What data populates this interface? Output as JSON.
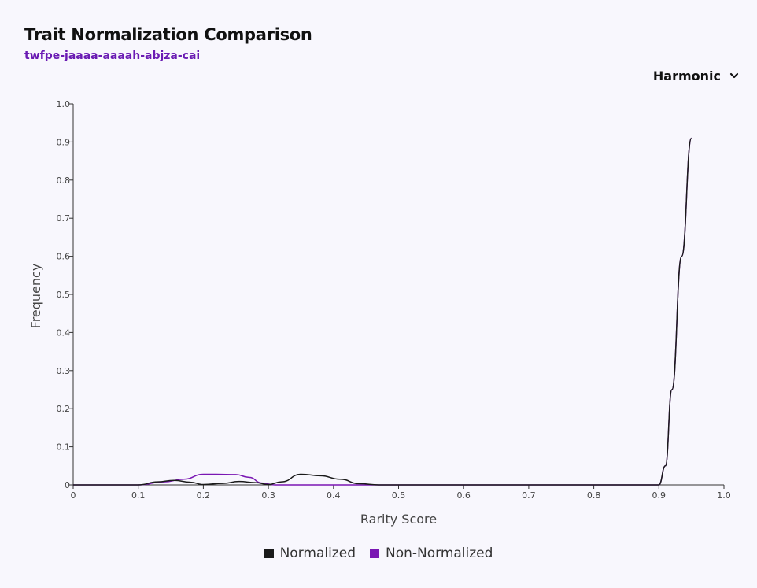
{
  "header": {
    "title": "Trait Normalization Comparison",
    "subtitle": "twfpe-jaaaa-aaaah-abjza-cai"
  },
  "dropdown": {
    "label": "Harmonic",
    "icon": "chevron-down-icon"
  },
  "colors": {
    "normalized": "#1a1a1a",
    "non_normalized": "#7a17b3",
    "accent": "#6a1bb3"
  },
  "chart_data": {
    "type": "line",
    "title": "",
    "xlabel": "Rarity Score",
    "ylabel": "Frequency",
    "xlim": [
      0,
      1
    ],
    "ylim": [
      0,
      1
    ],
    "x_ticks": [
      "0",
      "0.1",
      "0.2",
      "0.3",
      "0.4",
      "0.5",
      "0.6",
      "0.7",
      "0.8",
      "0.9",
      "1.0"
    ],
    "y_ticks": [
      "0",
      "0.1",
      "0.2",
      "0.3",
      "0.4",
      "0.5",
      "0.6",
      "0.7",
      "0.8",
      "0.9",
      "1.0"
    ],
    "grid": false,
    "legend_position": "bottom-center",
    "series": [
      {
        "name": "Normalized",
        "color": "#1a1a1a",
        "points": [
          [
            0,
            0
          ],
          [
            0.1,
            0
          ],
          [
            0.13,
            0.008
          ],
          [
            0.155,
            0.012
          ],
          [
            0.18,
            0.007
          ],
          [
            0.2,
            0.001
          ],
          [
            0.23,
            0.004
          ],
          [
            0.255,
            0.009
          ],
          [
            0.28,
            0.006
          ],
          [
            0.3,
            0.001
          ],
          [
            0.32,
            0.008
          ],
          [
            0.35,
            0.028
          ],
          [
            0.38,
            0.024
          ],
          [
            0.41,
            0.015
          ],
          [
            0.44,
            0.003
          ],
          [
            0.47,
            0
          ],
          [
            0.6,
            0
          ],
          [
            0.8,
            0
          ],
          [
            0.9,
            0
          ],
          [
            0.91,
            0.05
          ],
          [
            0.92,
            0.25
          ],
          [
            0.935,
            0.6
          ],
          [
            0.95,
            0.91
          ]
        ]
      },
      {
        "name": "Non-Normalized",
        "color": "#7a17b3",
        "points": [
          [
            0,
            0
          ],
          [
            0.1,
            0
          ],
          [
            0.14,
            0.008
          ],
          [
            0.17,
            0.015
          ],
          [
            0.2,
            0.028
          ],
          [
            0.22,
            0.028
          ],
          [
            0.25,
            0.027
          ],
          [
            0.27,
            0.02
          ],
          [
            0.29,
            0.005
          ],
          [
            0.31,
            0
          ],
          [
            0.45,
            0
          ],
          [
            0.6,
            0
          ],
          [
            0.8,
            0
          ],
          [
            0.9,
            0
          ],
          [
            0.91,
            0.05
          ],
          [
            0.92,
            0.25
          ],
          [
            0.935,
            0.6
          ],
          [
            0.95,
            0.91
          ]
        ]
      }
    ]
  }
}
